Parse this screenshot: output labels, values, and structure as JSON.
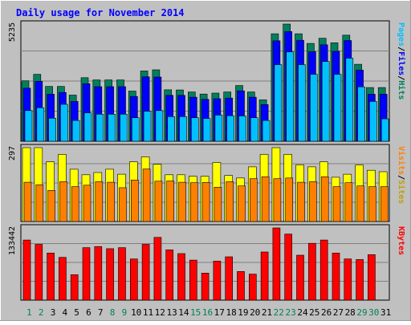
{
  "chart_data": {
    "type": "bar",
    "title": "Daily usage for November 2014",
    "categories": [
      "1",
      "2",
      "3",
      "4",
      "5",
      "6",
      "7",
      "8",
      "9",
      "10",
      "11",
      "12",
      "13",
      "14",
      "15",
      "16",
      "17",
      "18",
      "19",
      "20",
      "21",
      "22",
      "23",
      "24",
      "25",
      "26",
      "27",
      "28",
      "29",
      "30",
      "31"
    ],
    "weekend_days": [
      "1",
      "2",
      "8",
      "9",
      "15",
      "16",
      "22",
      "23",
      "29",
      "30"
    ],
    "top_panel": {
      "max_label": "5235",
      "ylim": [
        0,
        5235
      ],
      "axis_label": [
        "Pages",
        "/",
        "Files",
        "/",
        "Hits"
      ],
      "series": [
        {
          "name": "Hits",
          "values": [
            2700,
            2990,
            2450,
            2450,
            2060,
            2840,
            2740,
            2740,
            2740,
            2240,
            3140,
            3190,
            2300,
            2290,
            2200,
            2110,
            2150,
            2200,
            2490,
            2200,
            1850,
            4800,
            5235,
            4800,
            4370,
            4600,
            4400,
            4740,
            3440,
            2400,
            2400
          ]
        },
        {
          "name": "Files",
          "values": [
            2370,
            2680,
            2100,
            2180,
            1780,
            2570,
            2440,
            2440,
            2440,
            2000,
            2880,
            2870,
            2050,
            2050,
            1970,
            1870,
            1900,
            1930,
            2250,
            1970,
            1640,
            4490,
            4900,
            4510,
            4000,
            4310,
            4020,
            4500,
            3180,
            2100,
            2100
          ]
        },
        {
          "name": "Pages",
          "values": [
            1370,
            1500,
            1030,
            1650,
            930,
            1270,
            1210,
            1210,
            1210,
            1050,
            1340,
            1370,
            1100,
            1100,
            1050,
            1020,
            1170,
            1140,
            1130,
            1050,
            930,
            3420,
            3990,
            3420,
            2990,
            3560,
            2990,
            3710,
            2430,
            1780,
            1000
          ]
        }
      ]
    },
    "middle_panel": {
      "max_label": "297",
      "ylim": [
        0,
        297
      ],
      "axis_label": [
        "Visits",
        "/",
        "Sites"
      ],
      "series": [
        {
          "name": "Visits",
          "values": [
            297,
            297,
            240,
            270,
            210,
            188,
            197,
            210,
            190,
            240,
            260,
            230,
            188,
            188,
            182,
            182,
            237,
            185,
            175,
            220,
            270,
            297,
            270,
            228,
            220,
            240,
            178,
            190,
            227,
            206,
            200
          ]
        },
        {
          "name": "Sites",
          "values": [
            158,
            148,
            125,
            160,
            140,
            146,
            160,
            158,
            136,
            167,
            211,
            162,
            163,
            158,
            156,
            157,
            138,
            160,
            143,
            172,
            180,
            172,
            175,
            158,
            160,
            180,
            140,
            156,
            143,
            140,
            140
          ]
        }
      ]
    },
    "bottom_panel": {
      "max_label": "133442",
      "ylim": [
        0,
        133442
      ],
      "axis_label": [
        "KBytes"
      ],
      "series": [
        {
          "name": "KBytes",
          "values": [
            111000,
            103000,
            87000,
            79000,
            47000,
            97000,
            99000,
            95000,
            97000,
            76000,
            103000,
            116000,
            93000,
            86000,
            74000,
            50000,
            72000,
            80000,
            53000,
            48000,
            89000,
            133442,
            122000,
            83000,
            105000,
            111000,
            87000,
            76000,
            75000,
            84000,
            0
          ]
        }
      ]
    },
    "colors": {
      "hits": "#00805c",
      "files": "#0000ff",
      "pages": "#00c0ff",
      "visits": "#ffff00",
      "sites": "#ff8000",
      "kbytes": "#ff0000",
      "title": "#0000ff",
      "weekday_label": "#000000",
      "weekend_label": "#00805c",
      "plot_bg": "#c0c0c0"
    },
    "grid": true
  }
}
